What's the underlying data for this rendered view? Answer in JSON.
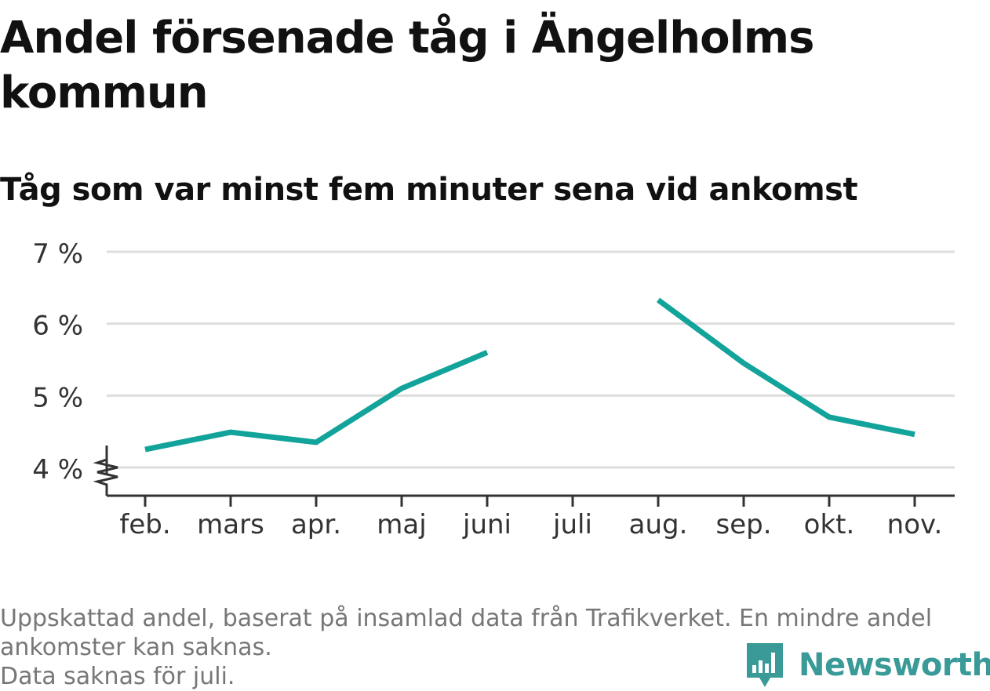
{
  "title": "Andel försenade tåg i Ängelholms kommun",
  "subtitle": "Tåg som var minst fem minuter sena vid ankomst",
  "footer": {
    "note_line1": "Uppskattad andel, baserat på insamlad data från Trafikverket. En mindre andel",
    "note_line2": "ankomster kan saknas.",
    "note_line3": "Data saknas för juli."
  },
  "brand": {
    "name": "Newsworthy",
    "color": "#3a9a98",
    "icon": "newsworthy-logo-icon"
  },
  "colors": {
    "line": "#12a39a",
    "grid": "#dddddd",
    "axis": "#333333"
  },
  "chart_data": {
    "type": "line",
    "categories": [
      "feb.",
      "mars",
      "apr.",
      "maj",
      "juni",
      "juli",
      "aug.",
      "sep.",
      "okt.",
      "nov."
    ],
    "series": [
      {
        "values": [
          4.25,
          4.49,
          4.35,
          5.1,
          5.6,
          null,
          6.33,
          5.45,
          4.7,
          4.46
        ]
      }
    ],
    "yticks": [
      4,
      5,
      6,
      7
    ],
    "ytick_labels": [
      "4 %",
      "5 %",
      "6 %",
      "7 %"
    ],
    "ylim": [
      4,
      7
    ],
    "axis_break": true,
    "grid": true,
    "legend": "none"
  }
}
